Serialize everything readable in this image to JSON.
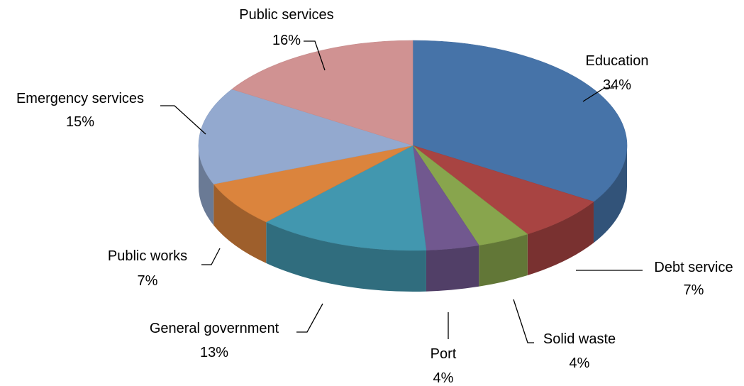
{
  "chart_data": {
    "type": "pie",
    "style": "3d-exploded-tilt",
    "title": "",
    "slices": [
      {
        "name": "Education",
        "value": 34,
        "label": "34%",
        "color": "#4673A8"
      },
      {
        "name": "Debt service",
        "value": 7,
        "label": "7%",
        "color": "#A84442"
      },
      {
        "name": "Solid waste",
        "value": 4,
        "label": "4%",
        "color": "#88A54D"
      },
      {
        "name": "Port",
        "value": 4,
        "label": "4%",
        "color": "#71588F"
      },
      {
        "name": "General government",
        "value": 13,
        "label": "13%",
        "color": "#4297AF"
      },
      {
        "name": "Public works",
        "value": 7,
        "label": "7%",
        "color": "#DB843D"
      },
      {
        "name": "Emergency services",
        "value": 15,
        "label": "15%",
        "color": "#93A9CF"
      },
      {
        "name": "Public services",
        "value": 16,
        "label": "16%",
        "color": "#D09292"
      }
    ],
    "legend": "none",
    "data_labels": "outside-with-leader-lines"
  }
}
